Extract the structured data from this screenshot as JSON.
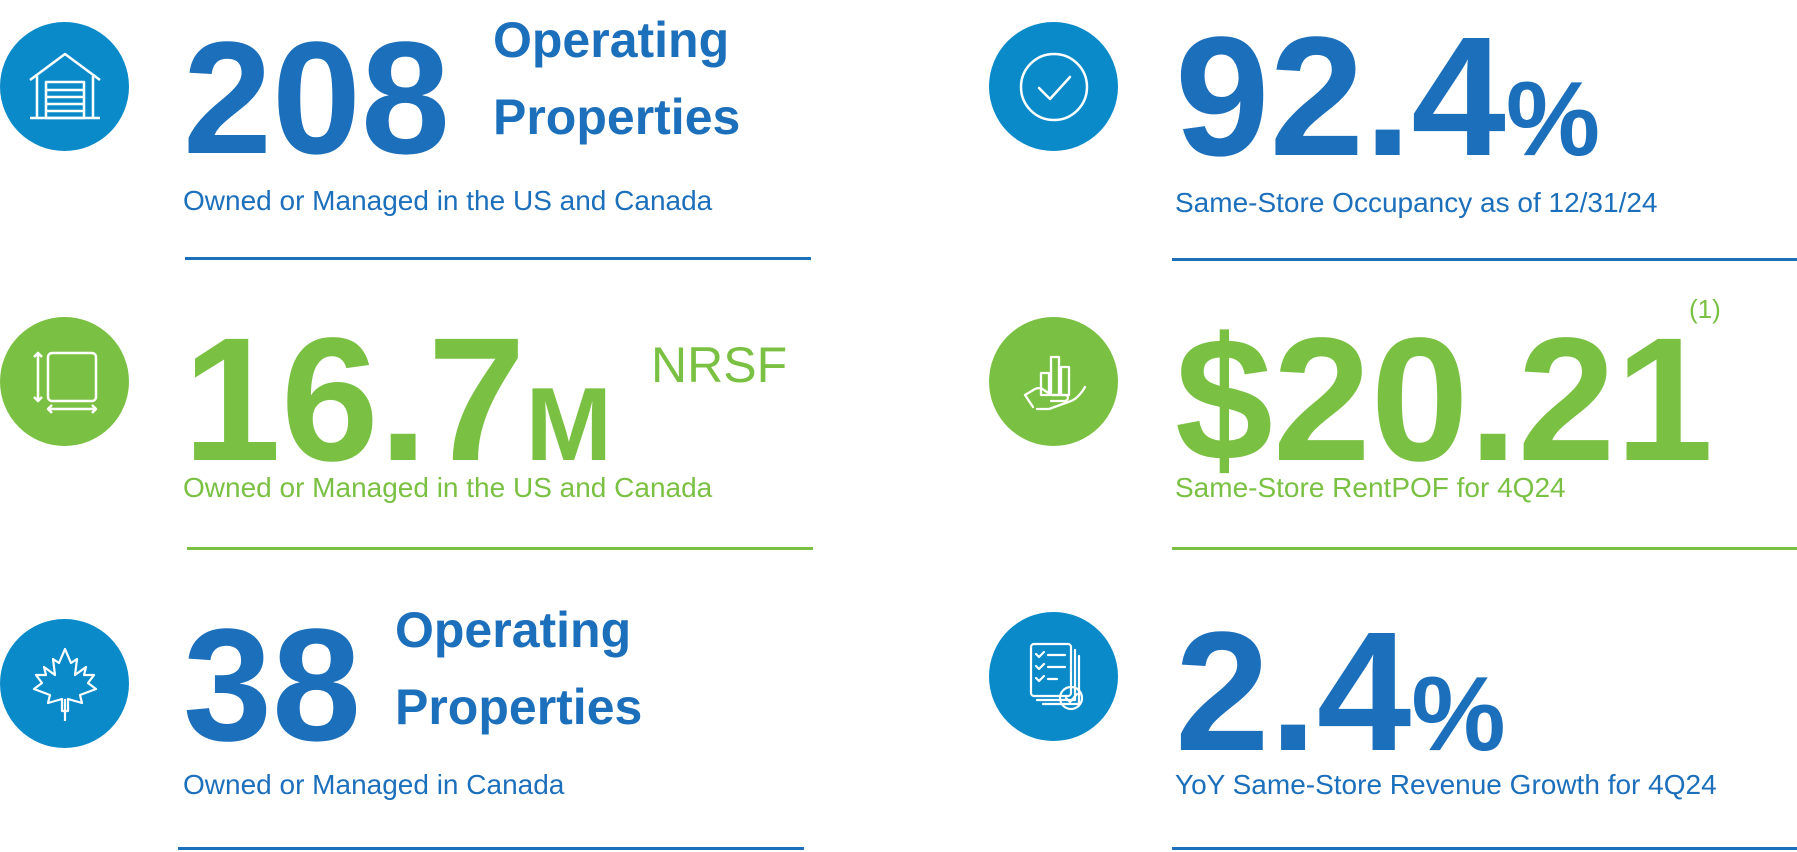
{
  "stats": [
    {
      "icon": "garage-icon",
      "value": "208",
      "side_line1": "Operating",
      "side_line2": "Properties",
      "caption": "Owned or Managed in the US and Canada",
      "color": "#1c6fbb"
    },
    {
      "icon": "storage-unit-icon",
      "value": "16.7",
      "value_suffix": "M",
      "unit": "NRSF",
      "caption": "Owned or Managed in the US and Canada",
      "color": "#7ac143"
    },
    {
      "icon": "maple-leaf-icon",
      "value": "38",
      "side_line1": "Operating",
      "side_line2": "Properties",
      "caption": "Owned or Managed in Canada",
      "color": "#1c6fbb"
    },
    {
      "icon": "checkmark-circle-icon",
      "value": "92.4",
      "value_suffix": "%",
      "caption": "Same-Store Occupancy as of 12/31/24",
      "color": "#1c6fbb"
    },
    {
      "icon": "hand-bar-chart-icon",
      "value": "$20.21",
      "footnote": "(1)",
      "caption": "Same-Store RentPOF for 4Q24",
      "color": "#7ac143"
    },
    {
      "icon": "checklist-documents-icon",
      "value": "2.4",
      "value_suffix": "%",
      "caption": "YoY Same-Store Revenue Growth for 4Q24",
      "color": "#1c6fbb"
    }
  ],
  "colors": {
    "blue_text": "#1c6fbb",
    "blue_icon": "#0a8ac9",
    "green": "#7ac143"
  }
}
